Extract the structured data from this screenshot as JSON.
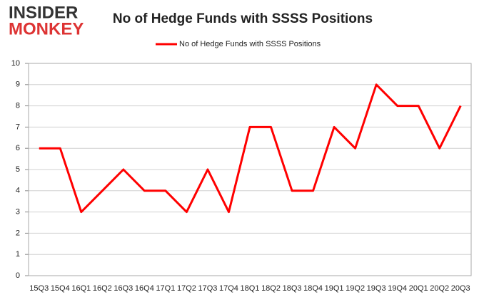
{
  "logo": {
    "line1": "INSIDER",
    "line2": "MONKEY"
  },
  "chart_data": {
    "type": "line",
    "title": "No of Hedge Funds with SSSS Positions",
    "categories": [
      "15Q3",
      "15Q4",
      "16Q1",
      "16Q2",
      "16Q3",
      "16Q4",
      "17Q1",
      "17Q2",
      "17Q3",
      "17Q4",
      "18Q1",
      "18Q2",
      "18Q3",
      "18Q4",
      "19Q1",
      "19Q2",
      "19Q3",
      "19Q4",
      "20Q1",
      "20Q2",
      "20Q3"
    ],
    "series": [
      {
        "name": "No of Hedge Funds with SSSS Positions",
        "color": "#ff0000",
        "values": [
          6,
          6,
          3,
          4,
          5,
          4,
          4,
          3,
          5,
          3,
          7,
          7,
          4,
          4,
          7,
          6,
          9,
          8,
          8,
          6,
          8
        ]
      }
    ],
    "ylim": [
      0,
      10
    ],
    "yticks": [
      0,
      1,
      2,
      3,
      4,
      5,
      6,
      7,
      8,
      9,
      10
    ],
    "grid": true,
    "legend": "top"
  }
}
